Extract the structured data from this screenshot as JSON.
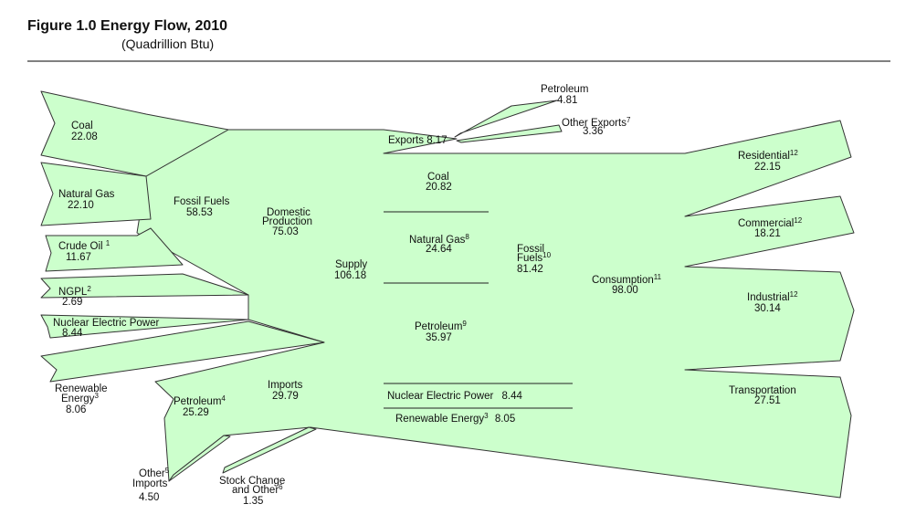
{
  "header": {
    "title": "Figure 1.0  Energy Flow, 2010",
    "subtitle": "(Quadrillion Btu)"
  },
  "nodes": [
    {
      "label": [
        "Coal"
      ],
      "value": "22.08"
    },
    {
      "label": [
        "Natural Gas"
      ],
      "value": "22.10"
    },
    {
      "label": [
        "Crude Oil"
      ],
      "note": "1",
      "value": "11.67"
    },
    {
      "label": [
        "NGPL"
      ],
      "note": "2",
      "value": "2.69"
    },
    {
      "label": [
        "Nuclear Electric Power"
      ],
      "value": "8.44"
    },
    {
      "label": [
        "Renewable",
        "Energy"
      ],
      "note": "3",
      "value": "8.06"
    },
    {
      "label": [
        "Fossil Fuels"
      ],
      "value": "58.53"
    },
    {
      "label": [
        "Domestic",
        "Production"
      ],
      "value": "75.03"
    },
    {
      "label": [
        "Supply"
      ],
      "value": "106.18"
    },
    {
      "label": [
        "Imports"
      ],
      "value": "29.79"
    },
    {
      "label": [
        "Petroleum"
      ],
      "note": "4",
      "value": "25.29"
    },
    {
      "label": [
        "Other",
        "Imports"
      ],
      "note": "5",
      "value": "4.50"
    },
    {
      "label": [
        "Stock Change",
        "and Other"
      ],
      "note": "6",
      "value": "1.35"
    },
    {
      "label": [
        "Exports"
      ],
      "value": "8.17"
    },
    {
      "label": [
        "Petroleum"
      ],
      "value": "4.81"
    },
    {
      "label": [
        "Other Exports"
      ],
      "note": "7",
      "value": "3.36"
    },
    {
      "label": [
        "Coal"
      ],
      "value": "20.82"
    },
    {
      "label": [
        "Natural Gas"
      ],
      "note": "8",
      "value": "24.64"
    },
    {
      "label": [
        "Petroleum"
      ],
      "note": "9",
      "value": "35.97"
    },
    {
      "label": [
        "Fossil",
        "Fuels"
      ],
      "note": "10",
      "value": "81.42"
    },
    {
      "label": [
        "Nuclear Electric Power"
      ],
      "value": "8.44"
    },
    {
      "label": [
        "Renewable Energy"
      ],
      "note": "3",
      "value": "8.05"
    },
    {
      "label": [
        "Consumption"
      ],
      "note": "11",
      "value": "98.00"
    },
    {
      "label": [
        "Residential"
      ],
      "note": "12",
      "value": "22.15"
    },
    {
      "label": [
        "Commercial"
      ],
      "note": "12",
      "value": "18.21"
    },
    {
      "label": [
        "Industrial"
      ],
      "note": "12",
      "value": "30.14"
    },
    {
      "label": [
        "Transportation"
      ],
      "value": "27.51"
    }
  ]
}
